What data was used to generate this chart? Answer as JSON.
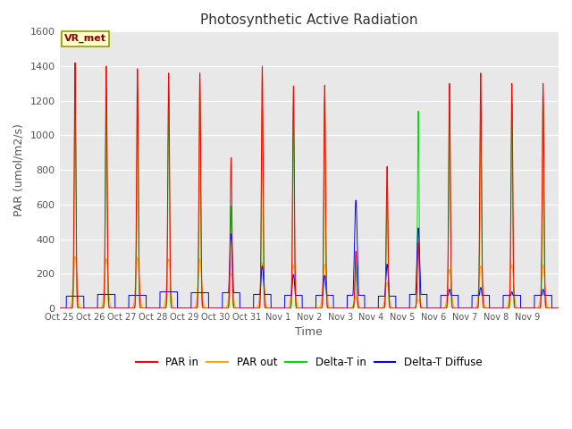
{
  "title": "Photosynthetic Active Radiation",
  "ylabel": "PAR (umol/m2/s)",
  "xlabel": "Time",
  "annotation": "VR_met",
  "ylim": [
    0,
    1600
  ],
  "background_color": "#e8e8e8",
  "tick_labels": [
    "Oct 25",
    "Oct 26",
    "Oct 27",
    "Oct 28",
    "Oct 29",
    "Oct 30",
    "Oct 31",
    "Nov 1",
    "Nov 2",
    "Nov 3",
    "Nov 4",
    "Nov 5",
    "Nov 6",
    "Nov 7",
    "Nov 8",
    "Nov 9"
  ],
  "legend": [
    "PAR in",
    "PAR out",
    "Delta-T in",
    "Delta-T Diffuse"
  ],
  "colors": {
    "PAR in": "#ff0000",
    "PAR out": "#ffa500",
    "Delta-T in": "#00dd00",
    "Delta-T Diffuse": "#0000ff"
  },
  "n_days": 16,
  "n_pts_per_day": 288,
  "par_in_peaks": [
    1420,
    1400,
    1385,
    1360,
    1360,
    870,
    1400,
    1285,
    1290,
    330,
    820,
    380,
    1300,
    1360,
    1300,
    1300
  ],
  "par_out_peaks": [
    300,
    285,
    295,
    285,
    285,
    200,
    265,
    250,
    255,
    65,
    150,
    50,
    225,
    245,
    250,
    250
  ],
  "delta_t_peaks": [
    1300,
    1270,
    1265,
    1245,
    1240,
    590,
    1160,
    1170,
    1200,
    270,
    700,
    1140,
    1195,
    1165,
    1180,
    1190
  ],
  "delta_d_peaks": [
    70,
    80,
    75,
    95,
    90,
    430,
    245,
    195,
    190,
    625,
    255,
    465,
    110,
    120,
    95,
    110
  ],
  "delta_d_flat": [
    70,
    80,
    75,
    95,
    90,
    90,
    80,
    75,
    75,
    75,
    70,
    80,
    75,
    75,
    75,
    75
  ]
}
